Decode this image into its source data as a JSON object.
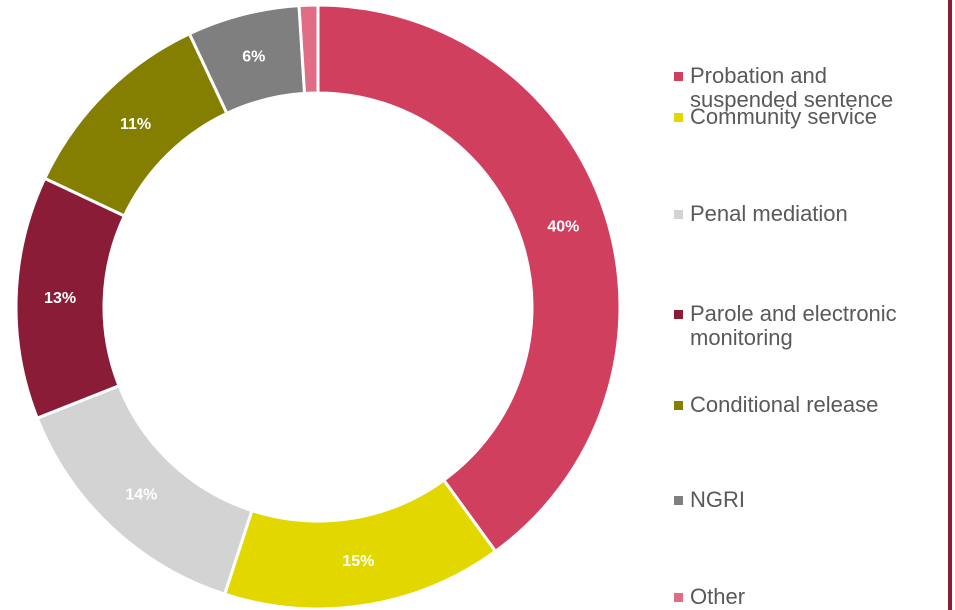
{
  "chart_data": {
    "type": "donut",
    "categories": [
      "Probation and suspended sentence",
      "Community service",
      "Penal mediation",
      "Parole and electronic monitoring",
      "Conditional release",
      "NGRI",
      "Other"
    ],
    "values": [
      40,
      15,
      14,
      13,
      11,
      6,
      1
    ],
    "value_labels": [
      "40%",
      "15%",
      "14%",
      "13%",
      "11%",
      "6%",
      null
    ],
    "colors": [
      "#d13f5f",
      "#e2d800",
      "#d3d3d3",
      "#8b1c38",
      "#847f00",
      "#7f7f7f",
      "#e06c85"
    ],
    "legend": "right"
  }
}
